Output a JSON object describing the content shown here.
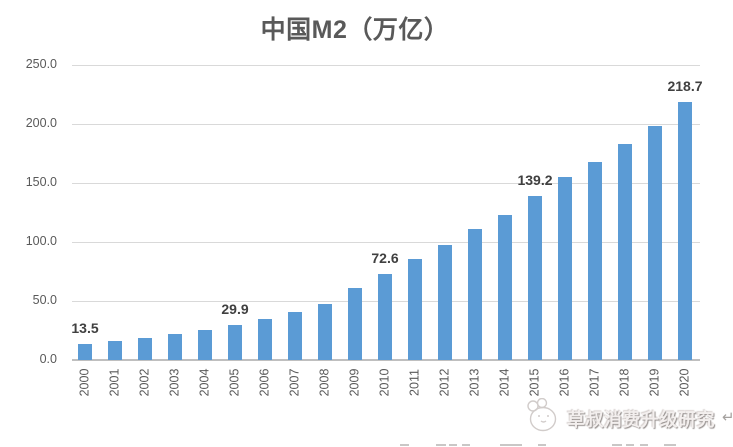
{
  "title": "中国M2（万亿）",
  "watermark": {
    "text": "草叔消费升级研究",
    "return_mark": "↵",
    "logo": "cartoon-animal-face-icon"
  },
  "colors": {
    "bar": "#5b9bd5",
    "gridline": "#d9d9d9",
    "axis_line": "#bfbfbf",
    "tick_label": "#595959",
    "data_label": "#404040",
    "title": "#595959"
  },
  "chart_data": {
    "type": "bar",
    "title": "中国M2（万亿）",
    "categories": [
      "2000",
      "2001",
      "2002",
      "2003",
      "2004",
      "2005",
      "2006",
      "2007",
      "2008",
      "2009",
      "2010",
      "2011",
      "2012",
      "2013",
      "2014",
      "2015",
      "2016",
      "2017",
      "2018",
      "2019",
      "2020"
    ],
    "values": [
      13.5,
      15.8,
      18.5,
      22.1,
      25.3,
      29.9,
      34.6,
      40.3,
      47.5,
      60.6,
      72.6,
      85.2,
      97.4,
      110.7,
      122.8,
      139.2,
      155.0,
      167.7,
      182.7,
      198.6,
      218.7
    ],
    "data_labels": {
      "2000": "13.5",
      "2005": "29.9",
      "2010": "72.6",
      "2015": "139.2",
      "2020": "218.7"
    },
    "xlabel": "",
    "ylabel": "",
    "ylim": [
      0,
      250
    ],
    "yticks": [
      "250.0",
      "200.0",
      "150.0",
      "100.0",
      "50.0",
      "0.0"
    ],
    "grid": true,
    "legend": false,
    "x_label_rotation": -90
  }
}
